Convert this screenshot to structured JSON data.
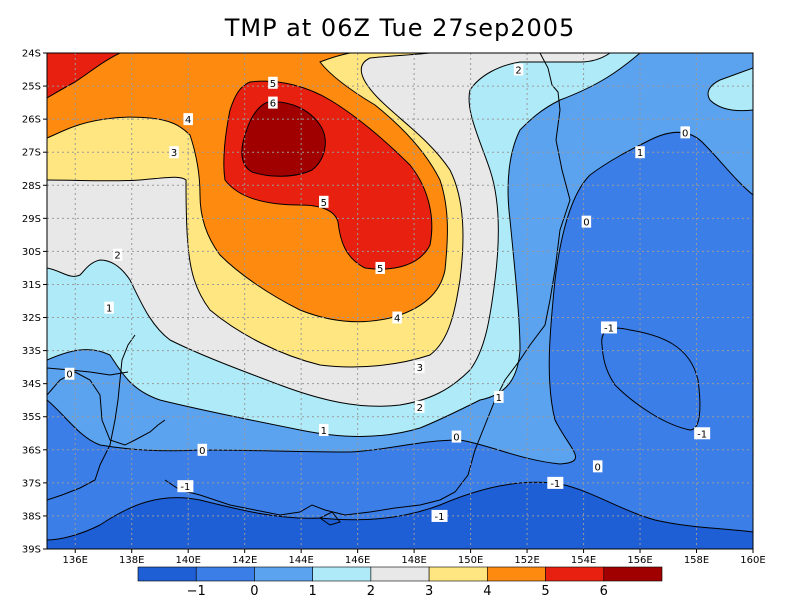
{
  "title": "TMP at 06Z Tue 27sep2005",
  "chart_data": {
    "type": "contour-map",
    "variable": "TMP",
    "title": "TMP at 06Z Tue 27sep2005",
    "x_ticks": [
      "136E",
      "138E",
      "140E",
      "142E",
      "144E",
      "146E",
      "148E",
      "150E",
      "152E",
      "154E",
      "156E",
      "158E",
      "160E"
    ],
    "y_ticks": [
      "24S",
      "25S",
      "26S",
      "27S",
      "28S",
      "29S",
      "30S",
      "31S",
      "32S",
      "33S",
      "34S",
      "35S",
      "36S",
      "37S",
      "38S",
      "39S"
    ],
    "lon_range": [
      135,
      160
    ],
    "lat_range": [
      -39,
      -24
    ],
    "grid": true,
    "contour_levels": [
      -1,
      0,
      1,
      2,
      3,
      4,
      5,
      6
    ],
    "colorbar": {
      "labels": [
        "-1",
        "0",
        "1",
        "2",
        "3",
        "4",
        "5",
        "6"
      ],
      "colors": [
        "#1f5fd6",
        "#3b7ee8",
        "#5ba2ef",
        "#aeeaf7",
        "#e8e8e8",
        "#ffe680",
        "#ff8a10",
        "#e82010",
        "#a00000"
      ]
    },
    "contour_labels": [
      {
        "text": "6",
        "lon": 143.0,
        "lat": -25.5
      },
      {
        "text": "5",
        "lon": 143.0,
        "lat": -24.9
      },
      {
        "text": "5",
        "lon": 144.8,
        "lat": -28.5
      },
      {
        "text": "5",
        "lon": 146.8,
        "lat": -30.5
      },
      {
        "text": "4",
        "lon": 140.0,
        "lat": -26.0
      },
      {
        "text": "4",
        "lon": 147.4,
        "lat": -32.0
      },
      {
        "text": "3",
        "lon": 139.5,
        "lat": -27.0
      },
      {
        "text": "3",
        "lon": 148.2,
        "lat": -33.5
      },
      {
        "text": "2",
        "lon": 151.7,
        "lat": -24.5
      },
      {
        "text": "2",
        "lon": 137.5,
        "lat": -30.1
      },
      {
        "text": "2",
        "lon": 148.2,
        "lat": -34.7
      },
      {
        "text": "1",
        "lon": 156.0,
        "lat": -27.0
      },
      {
        "text": "1",
        "lon": 137.2,
        "lat": -31.7
      },
      {
        "text": "1",
        "lon": 151.0,
        "lat": -34.4
      },
      {
        "text": "1",
        "lon": 144.8,
        "lat": -35.4
      },
      {
        "text": "0",
        "lon": 157.6,
        "lat": -26.4
      },
      {
        "text": "0",
        "lon": 154.1,
        "lat": -29.1
      },
      {
        "text": "0",
        "lon": 135.8,
        "lat": -33.7
      },
      {
        "text": "0",
        "lon": 140.5,
        "lat": -36.0
      },
      {
        "text": "0",
        "lon": 149.5,
        "lat": -35.6
      },
      {
        "text": "0",
        "lon": 154.5,
        "lat": -36.5
      },
      {
        "text": "-1",
        "lon": 154.9,
        "lat": -32.3
      },
      {
        "text": "-1",
        "lon": 158.2,
        "lat": -35.5
      },
      {
        "text": "-1",
        "lon": 139.9,
        "lat": -37.1
      },
      {
        "text": "-1",
        "lon": 153.0,
        "lat": -37.0
      },
      {
        "text": "-1",
        "lon": 148.9,
        "lat": -38.0
      }
    ]
  }
}
